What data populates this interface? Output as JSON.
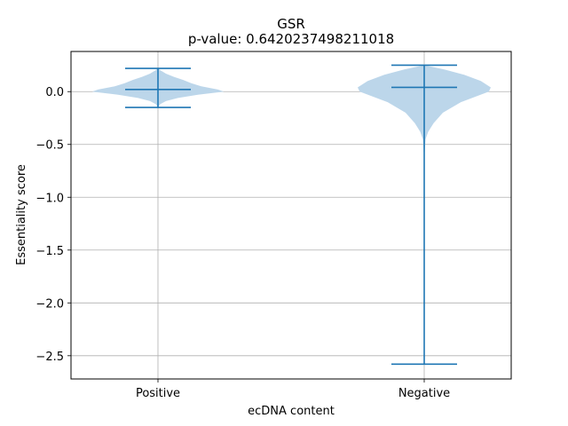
{
  "chart_data": {
    "type": "violin",
    "title": "GSR",
    "subtitle": "p-value: 0.6420237498211018",
    "xlabel": "ecDNA content",
    "ylabel": "Essentiality score",
    "categories": [
      "Positive",
      "Negative"
    ],
    "ylim": [
      -2.72,
      0.38
    ],
    "yticks": [
      0.0,
      -0.5,
      -1.0,
      -1.5,
      -2.0,
      -2.5
    ],
    "ytick_labels": [
      "0.0",
      "−0.5",
      "−1.0",
      "−1.5",
      "−2.0",
      "−2.5"
    ],
    "grid": true,
    "series": [
      {
        "min": -0.15,
        "max": 0.22,
        "median": 0.02,
        "profile": [
          [
            -0.15,
            0.002
          ],
          [
            -0.12,
            0.03
          ],
          [
            -0.09,
            0.12
          ],
          [
            -0.06,
            0.3
          ],
          [
            -0.03,
            0.6
          ],
          [
            0.0,
            0.99
          ],
          [
            0.02,
            0.9
          ],
          [
            0.05,
            0.65
          ],
          [
            0.08,
            0.5
          ],
          [
            0.11,
            0.38
          ],
          [
            0.14,
            0.24
          ],
          [
            0.17,
            0.12
          ],
          [
            0.2,
            0.04
          ],
          [
            0.22,
            0.002
          ]
        ]
      },
      {
        "min": -2.58,
        "max": 0.25,
        "median": 0.04,
        "profile": [
          [
            -2.58,
            0.004
          ],
          [
            -1.5,
            0.004
          ],
          [
            -0.6,
            0.004
          ],
          [
            -0.45,
            0.02
          ],
          [
            -0.38,
            0.06
          ],
          [
            -0.3,
            0.14
          ],
          [
            -0.2,
            0.28
          ],
          [
            -0.1,
            0.55
          ],
          [
            0.0,
            0.97
          ],
          [
            0.04,
            1.0
          ],
          [
            0.1,
            0.85
          ],
          [
            0.16,
            0.6
          ],
          [
            0.21,
            0.3
          ],
          [
            0.25,
            0.004
          ]
        ]
      }
    ],
    "colors": {
      "violin_fill": "#bcd6ea",
      "line": "#1f77b4",
      "grid": "#b0b0b0"
    }
  }
}
